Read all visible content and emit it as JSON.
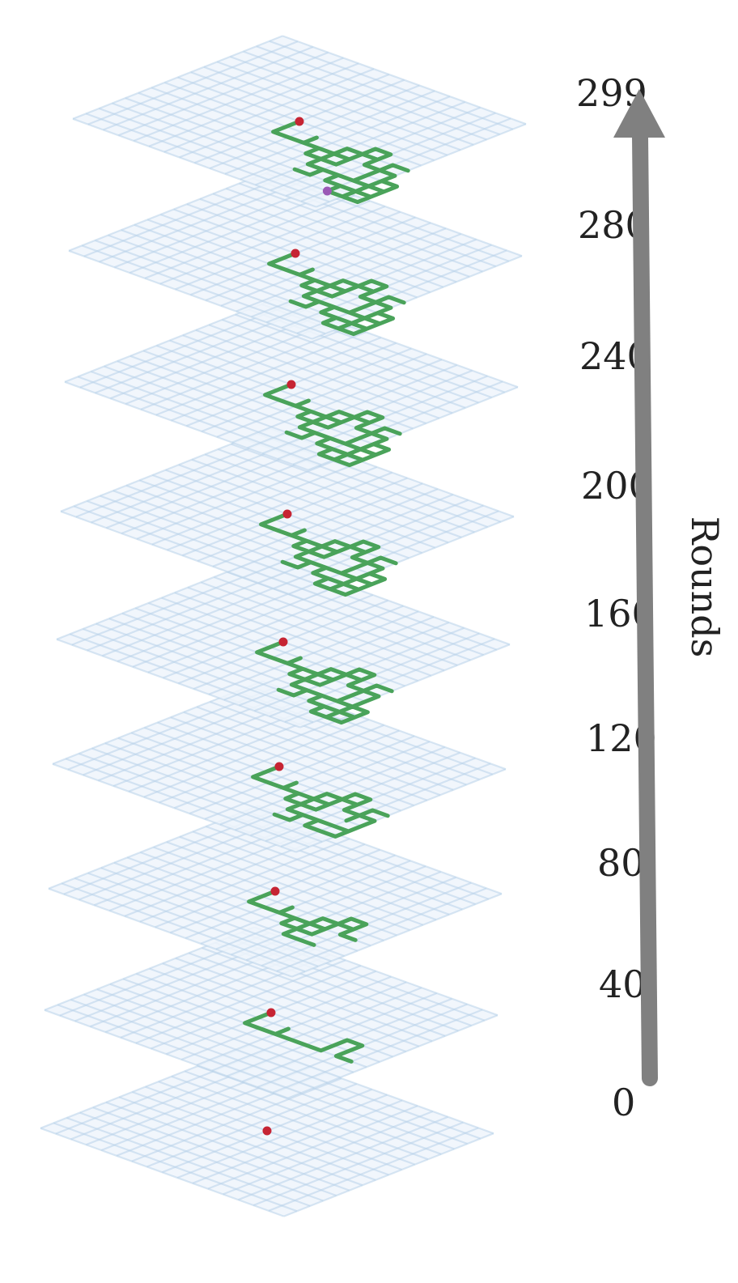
{
  "diagram": {
    "axis_title": "Rounds",
    "colors": {
      "grid_fill": "#eef5fb",
      "grid_line": "#b9d3ea",
      "path": "#4aa35a",
      "start_dot": "#c62433",
      "end_dot": "#9b59b6",
      "arrow": "#808080"
    },
    "layers": [
      {
        "round": "299",
        "walk_cells": 176
      },
      {
        "round": "280",
        "walk_cells": 160
      },
      {
        "round": "240",
        "walk_cells": 140
      },
      {
        "round": "200",
        "walk_cells": 120
      },
      {
        "round": "160",
        "walk_cells": 96
      },
      {
        "round": "120",
        "walk_cells": 72
      },
      {
        "round": "80",
        "walk_cells": 48
      },
      {
        "round": "40",
        "walk_cells": 24
      },
      {
        "round": "0",
        "walk_cells": 0
      }
    ]
  }
}
